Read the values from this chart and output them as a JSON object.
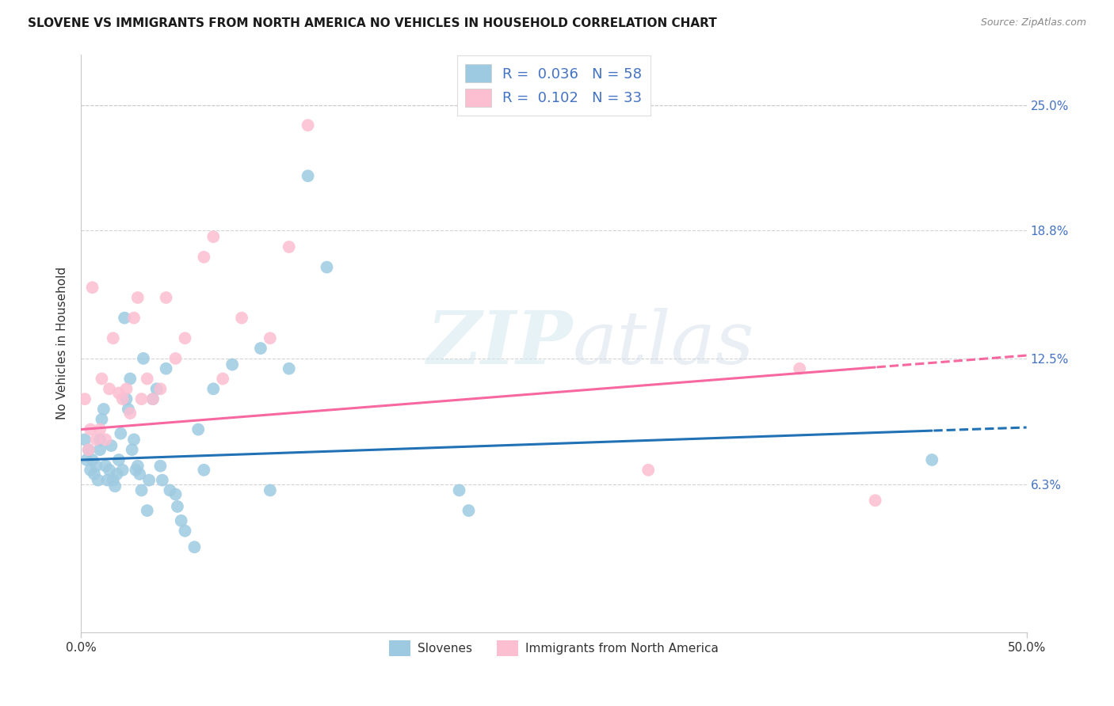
{
  "title": "SLOVENE VS IMMIGRANTS FROM NORTH AMERICA NO VEHICLES IN HOUSEHOLD CORRELATION CHART",
  "source": "Source: ZipAtlas.com",
  "ylabel": "No Vehicles in Household",
  "ytick_labels": [
    "6.3%",
    "12.5%",
    "18.8%",
    "25.0%"
  ],
  "ytick_values": [
    6.3,
    12.5,
    18.8,
    25.0
  ],
  "xlim": [
    0.0,
    50.0
  ],
  "ylim": [
    -1.0,
    27.5
  ],
  "legend_label1": "Slovenes",
  "legend_label2": "Immigrants from North America",
  "r1": "0.036",
  "n1": "58",
  "r2": "0.102",
  "n2": "33",
  "color_blue": "#9ecae1",
  "color_pink": "#fcbfd2",
  "color_blue_line": "#2171b5",
  "color_pink_line": "#f768a1",
  "blue_x": [
    0.2,
    0.3,
    0.4,
    0.5,
    0.6,
    0.7,
    0.8,
    0.9,
    1.0,
    1.0,
    1.1,
    1.2,
    1.3,
    1.4,
    1.5,
    1.6,
    1.7,
    1.8,
    1.9,
    2.0,
    2.1,
    2.2,
    2.3,
    2.4,
    2.5,
    2.6,
    2.7,
    2.8,
    2.9,
    3.0,
    3.1,
    3.2,
    3.3,
    3.5,
    3.6,
    3.8,
    4.0,
    4.2,
    4.3,
    4.5,
    4.7,
    5.0,
    5.1,
    5.3,
    5.5,
    6.0,
    6.2,
    6.5,
    7.0,
    8.0,
    9.5,
    10.0,
    11.0,
    12.0,
    13.0,
    20.0,
    20.5,
    45.0
  ],
  "blue_y": [
    8.5,
    7.5,
    8.0,
    7.0,
    7.5,
    6.8,
    7.2,
    6.5,
    8.0,
    8.5,
    9.5,
    10.0,
    7.2,
    6.5,
    7.0,
    8.2,
    6.5,
    6.2,
    6.8,
    7.5,
    8.8,
    7.0,
    14.5,
    10.5,
    10.0,
    11.5,
    8.0,
    8.5,
    7.0,
    7.2,
    6.8,
    6.0,
    12.5,
    5.0,
    6.5,
    10.5,
    11.0,
    7.2,
    6.5,
    12.0,
    6.0,
    5.8,
    5.2,
    4.5,
    4.0,
    3.2,
    9.0,
    7.0,
    11.0,
    12.2,
    13.0,
    6.0,
    12.0,
    21.5,
    17.0,
    6.0,
    5.0,
    7.5
  ],
  "pink_x": [
    0.2,
    0.4,
    0.5,
    0.6,
    0.8,
    1.0,
    1.1,
    1.3,
    1.5,
    1.7,
    2.0,
    2.2,
    2.4,
    2.6,
    2.8,
    3.0,
    3.2,
    3.5,
    3.8,
    4.2,
    4.5,
    5.0,
    5.5,
    6.5,
    7.0,
    7.5,
    8.5,
    10.0,
    11.0,
    12.0,
    30.0,
    38.0,
    42.0
  ],
  "pink_y": [
    10.5,
    8.0,
    9.0,
    16.0,
    8.5,
    9.0,
    11.5,
    8.5,
    11.0,
    13.5,
    10.8,
    10.5,
    11.0,
    9.8,
    14.5,
    15.5,
    10.5,
    11.5,
    10.5,
    11.0,
    15.5,
    12.5,
    13.5,
    17.5,
    18.5,
    11.5,
    14.5,
    13.5,
    18.0,
    24.0,
    7.0,
    12.0,
    5.5
  ],
  "watermark_zip": "ZIP",
  "watermark_atlas": "atlas",
  "background_color": "#ffffff",
  "grid_color": "#c8c8c8",
  "blue_line_intercept": 7.5,
  "blue_line_slope": 0.032,
  "pink_line_intercept": 9.0,
  "pink_line_slope": 0.073
}
